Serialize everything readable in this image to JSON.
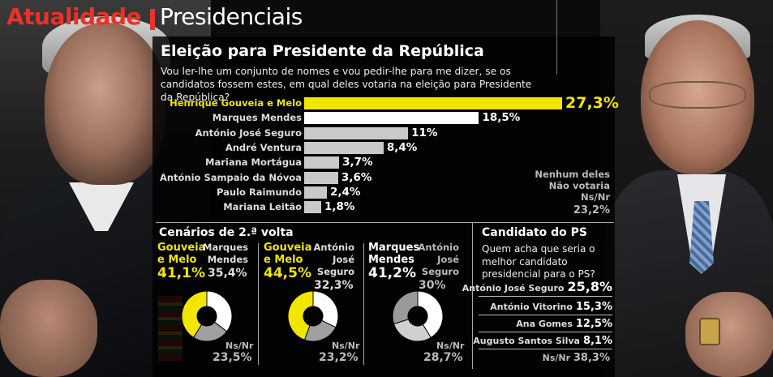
{
  "header": {
    "section": "Atualidade",
    "topic": "Presidenciais"
  },
  "title": "Eleição para Presidente da República",
  "question": "Vou ler-lhe um conjunto de nomes e vou pedir-lhe para me dizer, se os candidatos fossem estes, em qual deles votaria na eleição para Presidente da República?",
  "colors": {
    "accent_red": "#e8322a",
    "highlight": "#f2e500",
    "bar_grey": "#c9c9c9",
    "background": "#0b0b0b"
  },
  "chart_data": {
    "type": "bar",
    "orientation": "horizontal",
    "categories": [
      "Henrique Gouveia e Melo",
      "Marques Mendes",
      "António José Seguro",
      "André Ventura",
      "Mariana Mortágua",
      "António Sampaio da Nóvoa",
      "Paulo Raimundo",
      "Mariana Leitão"
    ],
    "values": [
      27.3,
      18.5,
      11,
      8.4,
      3.7,
      3.6,
      2.4,
      1.8
    ],
    "value_labels": [
      "27,3%",
      "18,5%",
      "11%",
      "8,4%",
      "3,7%",
      "3,6%",
      "2,4%",
      "1,8%"
    ],
    "other": {
      "label_lines": [
        "Nenhum deles",
        "Não votaria",
        "Ns/Nr"
      ],
      "value": 23.2,
      "value_label": "23,2%"
    }
  },
  "scenarios": {
    "title": "Cenários de 2.ª volta",
    "items": [
      {
        "a_name": [
          "Gouveia",
          "e Melo"
        ],
        "a_value": 41.1,
        "a_label": "41,1%",
        "b_name": [
          "Marques",
          "Mendes"
        ],
        "b_value": 35.4,
        "b_label": "35,4%",
        "ns_label": "Ns/Nr",
        "ns_value": 23.5,
        "ns_value_label": "23,5%"
      },
      {
        "a_name": [
          "Gouveia",
          "e Melo"
        ],
        "a_value": 44.5,
        "a_label": "44,5%",
        "b_name": [
          "António",
          "José",
          "Seguro"
        ],
        "b_value": 32.3,
        "b_label": "32,3%",
        "ns_label": "Ns/Nr",
        "ns_value": 23.2,
        "ns_value_label": "23,2%"
      },
      {
        "a_name": [
          "Marques",
          "Mendes"
        ],
        "a_value": 41.2,
        "a_label": "41,2%",
        "b_name": [
          "António",
          "José",
          "Seguro"
        ],
        "b_value": 30,
        "b_label": "30%",
        "ns_label": "Ns/Nr",
        "ns_value": 28.7,
        "ns_value_label": "28,7%"
      }
    ]
  },
  "ps": {
    "title": "Candidato do PS",
    "question": "Quem acha que seria o melhor candidato presidencial para o PS?",
    "rows": [
      {
        "name": "António José Seguro",
        "value": "25,8%"
      },
      {
        "name": "António Vitorino",
        "value": "15,3%"
      },
      {
        "name": "Ana Gomes",
        "value": "12,5%"
      },
      {
        "name": "Augusto Santos Silva",
        "value": "8,1%"
      }
    ],
    "ns_label": "Ns/Nr",
    "ns_value": "38,3%"
  }
}
